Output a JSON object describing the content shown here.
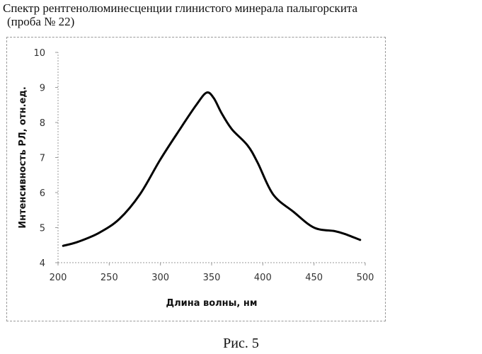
{
  "title": {
    "line1": "Спектр рентгенолюминесценции глинистого минерала палыгорскита",
    "line2": "(проба № 22)"
  },
  "caption": "Рис. 5",
  "chart_data": {
    "type": "line",
    "xlabel": "Длина волны, нм",
    "ylabel": "Интенсивность РЛ, отн.ед.",
    "xlim": [
      200,
      500
    ],
    "ylim": [
      4,
      10
    ],
    "xticks": [
      200,
      250,
      300,
      350,
      400,
      450,
      500
    ],
    "yticks": [
      4,
      5,
      6,
      7,
      8,
      9,
      10
    ],
    "grid": false,
    "color": "#000000",
    "series": [
      {
        "x": [
          205,
          220,
          240,
          260,
          280,
          300,
          320,
          335,
          345,
          352,
          360,
          370,
          385,
          395,
          410,
          430,
          450,
          470,
          480,
          495
        ],
        "y": [
          4.48,
          4.6,
          4.85,
          5.25,
          5.95,
          6.95,
          7.85,
          8.5,
          8.85,
          8.7,
          8.25,
          7.8,
          7.35,
          6.85,
          5.95,
          5.45,
          5.0,
          4.9,
          4.82,
          4.65
        ]
      }
    ]
  }
}
